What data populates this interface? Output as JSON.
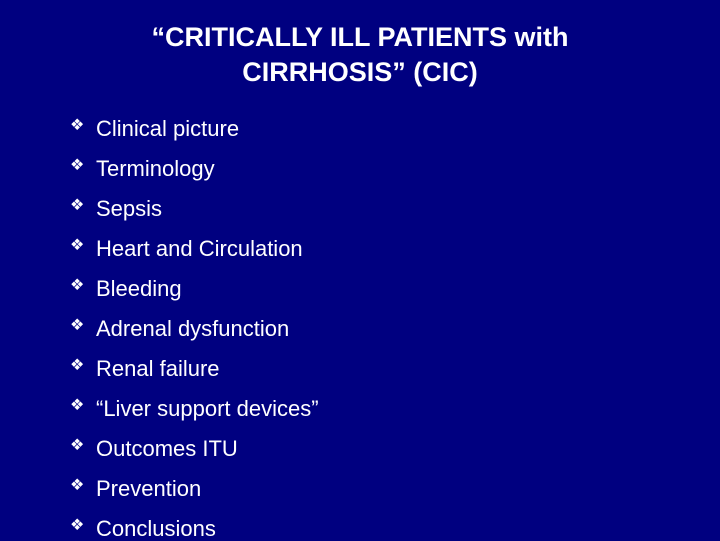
{
  "slide": {
    "background_color": "#000080",
    "text_color": "#ffffff",
    "title": {
      "line1": "“CRITICALLY ILL PATIENTS with",
      "line2": "CIRRHOSIS” (CIC)",
      "fontsize": 27,
      "font_weight": "bold"
    },
    "bullets": {
      "marker": "❖",
      "fontsize": 22,
      "items": [
        "Clinical picture",
        "Terminology",
        "Sepsis",
        "Heart and Circulation",
        "Bleeding",
        "Adrenal dysfunction",
        "Renal failure",
        "“Liver support devices”",
        "Outcomes ITU",
        "Prevention",
        "Conclusions"
      ]
    }
  }
}
